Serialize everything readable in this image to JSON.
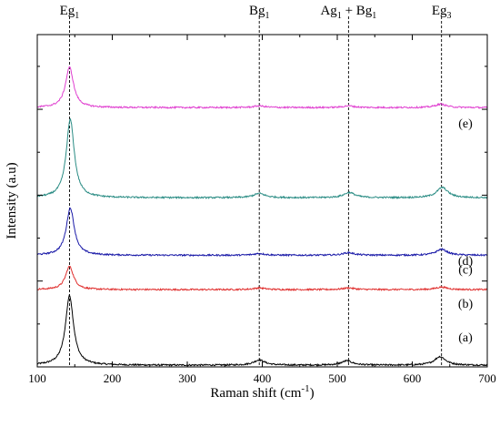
{
  "chart_data": {
    "type": "line",
    "xlabel_base": "Raman shift (cm",
    "xlabel_sup": "-1",
    "xlabel_close": ")",
    "ylabel": "Intensity (a.u)",
    "xlim": [
      100,
      700
    ],
    "xticks": [
      100,
      200,
      300,
      400,
      500,
      600,
      700
    ],
    "grid": false,
    "peak_markers": [
      {
        "x": 143,
        "base": "Eg",
        "sub": "1",
        "plus": "",
        "base2": "",
        "sub2": ""
      },
      {
        "x": 396,
        "base": "Bg",
        "sub": "1",
        "plus": "",
        "base2": "",
        "sub2": ""
      },
      {
        "x": 515,
        "base": "Ag",
        "sub": "1",
        "plus": " + ",
        "base2": "Bg",
        "sub2": "1"
      },
      {
        "x": 639,
        "base": "Eg",
        "sub": "3",
        "plus": "",
        "base2": "",
        "sub2": ""
      }
    ],
    "series": [
      {
        "label": "(a)",
        "color": "#000000",
        "baseline": 0.0,
        "peaks": [
          {
            "x": 143,
            "height": 0.81
          },
          {
            "x": 396,
            "height": 0.06
          },
          {
            "x": 513,
            "height": 0.05
          },
          {
            "x": 637,
            "height": 0.1
          }
        ]
      },
      {
        "label": "(b)",
        "color": "#e0302f",
        "baseline": 0.88,
        "peaks": [
          {
            "x": 143,
            "height": 0.27
          },
          {
            "x": 396,
            "height": 0.02
          },
          {
            "x": 515,
            "height": 0.02
          },
          {
            "x": 639,
            "height": 0.03
          }
        ]
      },
      {
        "label": "(c)",
        "color": "#1a1aa8",
        "baseline": 1.28,
        "peaks": [
          {
            "x": 144,
            "height": 0.55
          },
          {
            "x": 396,
            "height": 0.02
          },
          {
            "x": 515,
            "height": 0.03
          },
          {
            "x": 639,
            "height": 0.07
          }
        ]
      },
      {
        "label": "(d)",
        "color": "#2a8c84",
        "baseline": 1.95,
        "peaks": [
          {
            "x": 144,
            "height": 0.91
          },
          {
            "x": 396,
            "height": 0.05
          },
          {
            "x": 516,
            "height": 0.06
          },
          {
            "x": 640,
            "height": 0.12
          }
        ]
      },
      {
        "label": "(e)",
        "color": "#e040d0",
        "baseline": 3.0,
        "peaks": [
          {
            "x": 143,
            "height": 0.47
          },
          {
            "x": 396,
            "height": 0.02
          },
          {
            "x": 515,
            "height": 0.02
          },
          {
            "x": 638,
            "height": 0.04
          }
        ]
      }
    ]
  }
}
